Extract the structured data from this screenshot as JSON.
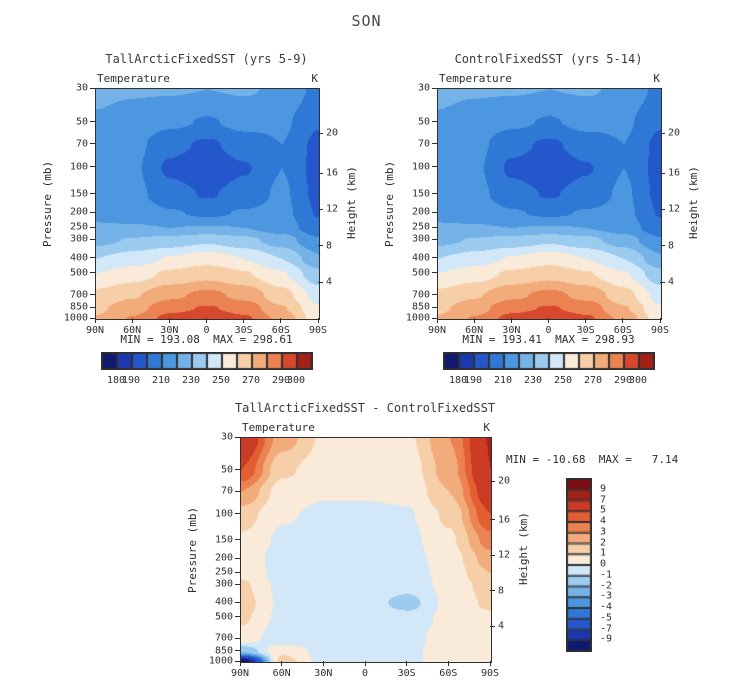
{
  "chart_data": {
    "type": "heatmap",
    "figure_title": "SON",
    "x_axis": {
      "tick_labels": [
        "90N",
        "60N",
        "30N",
        "0",
        "30S",
        "60S",
        "90S"
      ]
    },
    "y_axis": {
      "label": "Pressure (mb)",
      "scale": "log",
      "top_mb": 30,
      "bottom_mb": 1000,
      "ticks_mb": [
        30,
        50,
        70,
        100,
        150,
        200,
        250,
        300,
        400,
        500,
        700,
        850,
        1000
      ]
    },
    "y2_axis": {
      "label": "Height (km)",
      "ticks": [
        {
          "label": "20",
          "at_mb": 60
        },
        {
          "label": "16",
          "at_mb": 110
        },
        {
          "label": "12",
          "at_mb": 191
        },
        {
          "label": "8",
          "at_mb": 333
        },
        {
          "label": "4",
          "at_mb": 581
        }
      ]
    },
    "grid": {
      "latitudes_deg": [
        90,
        60,
        30,
        0,
        -30,
        -60,
        -90
      ],
      "pressures_mb": [
        30,
        50,
        70,
        100,
        150,
        200,
        250,
        300,
        400,
        500,
        700,
        850,
        1000
      ]
    },
    "temperature_scale": {
      "units": "K",
      "levels": [
        180,
        190,
        200,
        210,
        220,
        230,
        240,
        250,
        260,
        270,
        280,
        290,
        300
      ],
      "tick_values": [
        180,
        190,
        210,
        230,
        250,
        270,
        290,
        300
      ],
      "colors": [
        "#10196e",
        "#1c39b0",
        "#2457cc",
        "#2f78d6",
        "#4d97e0",
        "#74b2e8",
        "#9ccbf0",
        "#d2e7f8",
        "#f9ead9",
        "#f6cfa8",
        "#f2ab7a",
        "#eb8252",
        "#d6472b",
        "#a42118"
      ]
    },
    "difference_scale": {
      "units": "K",
      "levels": [
        -9,
        -7,
        -5,
        -4,
        -3,
        -2,
        -1,
        0,
        1,
        2,
        3,
        4,
        5,
        7,
        9
      ],
      "tick_values": [
        9,
        7,
        5,
        4,
        3,
        2,
        1,
        0,
        -1,
        -2,
        -3,
        -4,
        -5,
        -7,
        -9
      ],
      "colors": [
        "#10196e",
        "#1b37ae",
        "#2457cc",
        "#2f78d6",
        "#4d97e0",
        "#74b2e8",
        "#9ccbf0",
        "#d2e7f8",
        "#f9ead9",
        "#f6cfa8",
        "#f2ab7a",
        "#eb8252",
        "#e35f33",
        "#ca3a24",
        "#a42118",
        "#7d0d12"
      ]
    },
    "panels": [
      {
        "title": "TallArcticFixedSST (yrs 5-9)",
        "variable": "Temperature",
        "units": "K",
        "min": 193.08,
        "max": 298.61,
        "stats_text": "MIN = 193.08  MAX = 298.61",
        "field_K": [
          [
            222,
            221,
            221,
            220,
            221,
            218,
            207
          ],
          [
            219,
            216,
            212,
            209,
            213,
            212,
            201
          ],
          [
            217,
            213,
            203,
            198,
            205,
            210,
            197
          ],
          [
            216,
            212,
            198,
            193.1,
            199,
            210,
            196
          ],
          [
            216,
            213,
            204,
            199,
            204,
            212,
            197
          ],
          [
            218,
            216,
            211,
            208,
            211,
            213,
            199
          ],
          [
            221,
            221,
            220,
            221,
            220,
            215,
            204
          ],
          [
            227,
            231,
            234,
            238,
            233,
            225,
            211
          ],
          [
            240,
            245,
            251,
            256,
            250,
            240,
            222
          ],
          [
            250,
            255,
            262,
            266,
            261,
            251,
            233
          ],
          [
            263,
            269,
            278,
            283,
            277,
            264,
            246
          ],
          [
            268,
            276,
            287,
            291,
            286,
            271,
            251
          ],
          [
            271,
            281,
            294,
            298.6,
            292,
            277,
            254
          ]
        ]
      },
      {
        "title": "ControlFixedSST (yrs 5-14)",
        "variable": "Temperature",
        "units": "K",
        "min": 193.41,
        "max": 298.93,
        "stats_text": "MIN = 193.41  MAX = 298.93",
        "field_K": [
          [
            222,
            221,
            221,
            220,
            221,
            218,
            207
          ],
          [
            219,
            216,
            212,
            209,
            213,
            212,
            201
          ],
          [
            217,
            213,
            203,
            198,
            205,
            210,
            197
          ],
          [
            216,
            212,
            198,
            193.4,
            199,
            210,
            196
          ],
          [
            216,
            213,
            204,
            199,
            204,
            212,
            197
          ],
          [
            218,
            216,
            211,
            208,
            211,
            213,
            199
          ],
          [
            221,
            221,
            220,
            221,
            220,
            215,
            204
          ],
          [
            227,
            231,
            234,
            238,
            233,
            225,
            211
          ],
          [
            240,
            245,
            251,
            256,
            250,
            240,
            222
          ],
          [
            250,
            255,
            262,
            266,
            261,
            251,
            233
          ],
          [
            263,
            269,
            278,
            283,
            277,
            264,
            246
          ],
          [
            268,
            276,
            287,
            291,
            286,
            271,
            251
          ],
          [
            271,
            281,
            294,
            298.9,
            292,
            277,
            254
          ]
        ]
      },
      {
        "title": "TallArcticFixedSST - ControlFixedSST",
        "variable": "Temperature",
        "units": "K",
        "min": -10.68,
        "max": 7.14,
        "stats_text": "MIN = -10.68  MAX =   7.14",
        "field_K": [
          [
            6.5,
            2.5,
            0.8,
            0.5,
            0.8,
            3,
            7.1
          ],
          [
            5,
            1.2,
            0.4,
            0.3,
            0.4,
            2.5,
            7
          ],
          [
            3,
            0.5,
            0.1,
            0.1,
            0.2,
            2,
            6
          ],
          [
            1.5,
            0.1,
            -0.2,
            -0.2,
            -0.1,
            1.2,
            5
          ],
          [
            0.8,
            -0.2,
            -0.4,
            -0.4,
            -0.3,
            0.8,
            3.5
          ],
          [
            0.6,
            -0.4,
            -0.5,
            -0.5,
            -0.4,
            0.5,
            2.5
          ],
          [
            0.8,
            -0.4,
            -0.5,
            -0.5,
            -0.5,
            0.4,
            2
          ],
          [
            1.2,
            -0.3,
            -0.5,
            -0.5,
            -0.6,
            0.3,
            1.5
          ],
          [
            1.5,
            -0.2,
            -0.4,
            -0.5,
            -1.4,
            0.3,
            1.2
          ],
          [
            1.2,
            -0.3,
            -0.4,
            -0.4,
            -0.6,
            0.3,
            0.8
          ],
          [
            0.5,
            -0.6,
            -0.4,
            -0.3,
            -0.4,
            0.6,
            0.5
          ],
          [
            -2,
            0.8,
            -0.4,
            -0.3,
            -0.3,
            0.7,
            0.4
          ],
          [
            -10.7,
            1.5,
            -0.4,
            -0.3,
            -0.3,
            0.7,
            0.4
          ]
        ]
      }
    ]
  }
}
